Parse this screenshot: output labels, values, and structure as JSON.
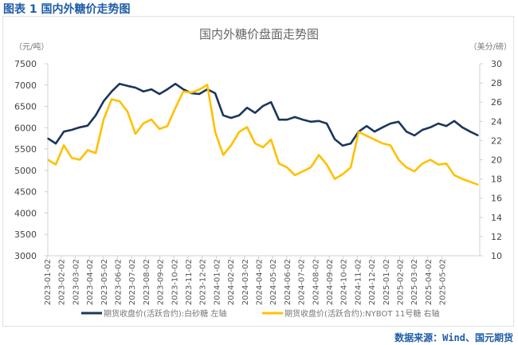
{
  "figure_title": "图表 1 国内外糖价走势图",
  "source": "数据来源：Wind、国元期货",
  "chart_data": {
    "type": "line",
    "title": "国内外糖价盘面走势图",
    "ylabel_left": "（元/吨）",
    "ylabel_right": "（美分/磅）",
    "ylim_left": [
      3000,
      7500
    ],
    "yticks_left": [
      3000,
      3500,
      4000,
      4500,
      5000,
      5500,
      6000,
      6500,
      7000,
      7500
    ],
    "ylim_right": [
      10,
      30
    ],
    "yticks_right": [
      10,
      12,
      14,
      16,
      18,
      20,
      22,
      24,
      26,
      28,
      30
    ],
    "x_tick_labels": [
      "2023-01-02",
      "2023-02-02",
      "2023-03-02",
      "2023-04-02",
      "2023-05-02",
      "2023-06-02",
      "2023-07-02",
      "2023-08-02",
      "2023-09-02",
      "2023-10-02",
      "2023-11-02",
      "2023-12-02",
      "2024-01-02",
      "2024-02-02",
      "2024-03-02",
      "2024-04-02",
      "2024-05-02",
      "2024-06-02",
      "2024-07-02",
      "2024-08-02",
      "2024-09-02",
      "2024-10-02",
      "2024-11-02",
      "2024-12-02",
      "2025-01-02",
      "2025-02-02",
      "2025-03-02",
      "2025-04-02",
      "2025-05-02"
    ],
    "x_month_index": [
      0.06,
      0.62,
      1.19,
      1.75,
      2.32,
      2.88,
      3.45,
      4.01,
      4.58,
      5.14,
      5.71,
      6.27,
      6.84,
      7.4,
      7.97,
      8.53,
      9.1,
      9.66,
      10.23,
      10.79,
      11.36,
      11.92,
      12.49,
      13.05,
      13.62,
      14.18,
      14.75,
      15.31,
      15.88,
      16.44,
      17.01,
      17.57,
      18.14,
      18.7,
      19.27,
      19.83,
      20.4,
      20.96,
      21.53,
      22.09,
      22.66,
      23.22,
      23.79,
      24.35,
      24.92,
      25.48,
      26.05,
      26.61,
      27.18,
      27.74,
      28.31,
      28.87,
      29.44,
      30.0,
      30.56
    ],
    "x_max_index": 30.9,
    "series": [
      {
        "name": "期货收盘价(活跃合约):白砂糖  左轴",
        "axis": "left",
        "color": "#1b365d",
        "values": [
          5750,
          5630,
          5910,
          5950,
          6010,
          6050,
          6290,
          6620,
          6850,
          7030,
          6980,
          6940,
          6850,
          6900,
          6790,
          6900,
          7030,
          6900,
          6810,
          6790,
          6900,
          6810,
          6290,
          6230,
          6290,
          6470,
          6350,
          6510,
          6600,
          6190,
          6190,
          6250,
          6190,
          6140,
          6160,
          6100,
          5730,
          5580,
          5630,
          5910,
          6040,
          5910,
          6010,
          6100,
          6140,
          5910,
          5820,
          5950,
          6010,
          6100,
          6040,
          6160,
          6010,
          5910,
          5820
        ]
      },
      {
        "name": "期货收盘价(活跃合约):NYBOT 11号糖  右轴",
        "axis": "right",
        "color": "#ffc000",
        "values": [
          20.0,
          19.5,
          21.5,
          20.2,
          20.0,
          21.0,
          20.7,
          24.2,
          26.3,
          26.1,
          25.0,
          22.7,
          23.8,
          24.2,
          23.2,
          23.5,
          25.4,
          27.1,
          27.0,
          27.3,
          27.8,
          22.9,
          20.5,
          21.5,
          22.9,
          23.4,
          21.7,
          21.3,
          22.1,
          19.6,
          19.2,
          18.4,
          18.8,
          19.2,
          20.5,
          19.5,
          18.0,
          18.5,
          19.2,
          22.9,
          22.5,
          22.1,
          21.7,
          21.5,
          20.0,
          19.2,
          18.8,
          19.6,
          20.0,
          19.5,
          19.6,
          18.4,
          18.0,
          17.7,
          17.4
        ]
      }
    ],
    "legend_position": "bottom",
    "grid": false
  }
}
